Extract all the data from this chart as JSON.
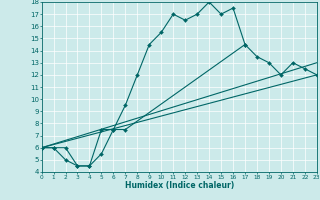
{
  "xlabel": "Humidex (Indice chaleur)",
  "bg_color": "#cceaea",
  "line_color": "#006666",
  "grid_color": "#ffffff",
  "xlim": [
    0,
    23
  ],
  "ylim": [
    4,
    18
  ],
  "line1_x": [
    0,
    1,
    2,
    3,
    4,
    5,
    6,
    7,
    8,
    9,
    10,
    11,
    12,
    13,
    14,
    15,
    16,
    17
  ],
  "line1_y": [
    6,
    6,
    6,
    4.5,
    4.5,
    7.5,
    7.5,
    9.5,
    12,
    14.5,
    15.5,
    17,
    16.5,
    17,
    18,
    17,
    17.5,
    14.5
  ],
  "line2_x": [
    0,
    1,
    2,
    3,
    4,
    5,
    6,
    7,
    17,
    18,
    19,
    20,
    21,
    22,
    23
  ],
  "line2_y": [
    6,
    6,
    5,
    4.5,
    4.5,
    5.5,
    7.5,
    7.5,
    14.5,
    13.5,
    13,
    12,
    13,
    12.5,
    12
  ],
  "line3_x": [
    0,
    23
  ],
  "line3_y": [
    6,
    13
  ],
  "line4_x": [
    0,
    23
  ],
  "line4_y": [
    6,
    12
  ]
}
